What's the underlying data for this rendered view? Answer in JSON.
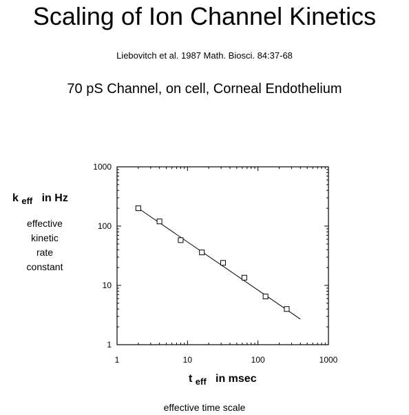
{
  "header": {
    "title": "Scaling of Ion Channel Kinetics",
    "citation": "Liebovitch et al.  1987  Math. Biosci. 84:37-68",
    "subtitle": "70 pS Channel, on cell, Corneal Endothelium"
  },
  "y_axis_label": {
    "symbol": "k",
    "subscript": "eff",
    "units": "in  Hz",
    "description": [
      "effective",
      "kinetic",
      "rate",
      "constant"
    ]
  },
  "x_axis_label": {
    "symbol": "t",
    "subscript": "eff",
    "units": "in msec",
    "description": "effective time scale"
  },
  "chart_data": {
    "type": "scatter",
    "xscale": "log",
    "yscale": "log",
    "xlim": [
      1,
      1000
    ],
    "ylim": [
      1,
      1000
    ],
    "xticks": [
      "1",
      "10",
      "100",
      "1000"
    ],
    "yticks": [
      "1",
      "10",
      "100",
      "1000"
    ],
    "grid": false,
    "series": [
      {
        "marker": "open-square",
        "x": [
          2,
          4,
          8,
          16,
          32,
          64,
          128,
          256
        ],
        "y": [
          200,
          120,
          58,
          36,
          24,
          13.5,
          6.5,
          4
        ]
      }
    ],
    "fit_line": {
      "x": [
        2,
        400
      ],
      "y": [
        200,
        2.7
      ]
    }
  }
}
